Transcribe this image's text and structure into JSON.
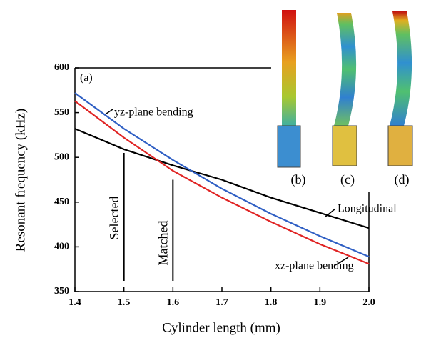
{
  "chart_data": {
    "type": "line",
    "panel_label": "(a)",
    "x_label": "Cylinder length (mm)",
    "y_label": "Resonant frequency (kHz)",
    "x": [
      1.4,
      1.5,
      1.6,
      1.7,
      1.8,
      1.9,
      2.0
    ],
    "series": [
      {
        "name": "Longitudinal",
        "color": "#000000",
        "values": [
          532,
          509,
          491,
          475,
          455,
          438,
          421
        ]
      },
      {
        "name": "yz-plane bending",
        "color": "#2f5fc4",
        "values": [
          572,
          532,
          497,
          465,
          437,
          412,
          389
        ]
      },
      {
        "name": "xz-plane bending",
        "color": "#e02424",
        "values": [
          563,
          522,
          485,
          455,
          428,
          403,
          381
        ]
      }
    ],
    "markers": [
      {
        "label": "Selected",
        "x": 1.5
      },
      {
        "label": "Matched",
        "x": 1.6
      }
    ],
    "insets": [
      "(b)",
      "(c)",
      "(d)"
    ],
    "xlim": [
      1.4,
      2.0
    ],
    "ylim": [
      350,
      600
    ],
    "xticks": [
      1.4,
      1.5,
      1.6,
      1.7,
      1.8,
      1.9,
      {
        "value": 2.0,
        "label": "2.0"
      }
    ],
    "yticks": [
      350,
      400,
      450,
      500,
      550,
      600
    ]
  }
}
